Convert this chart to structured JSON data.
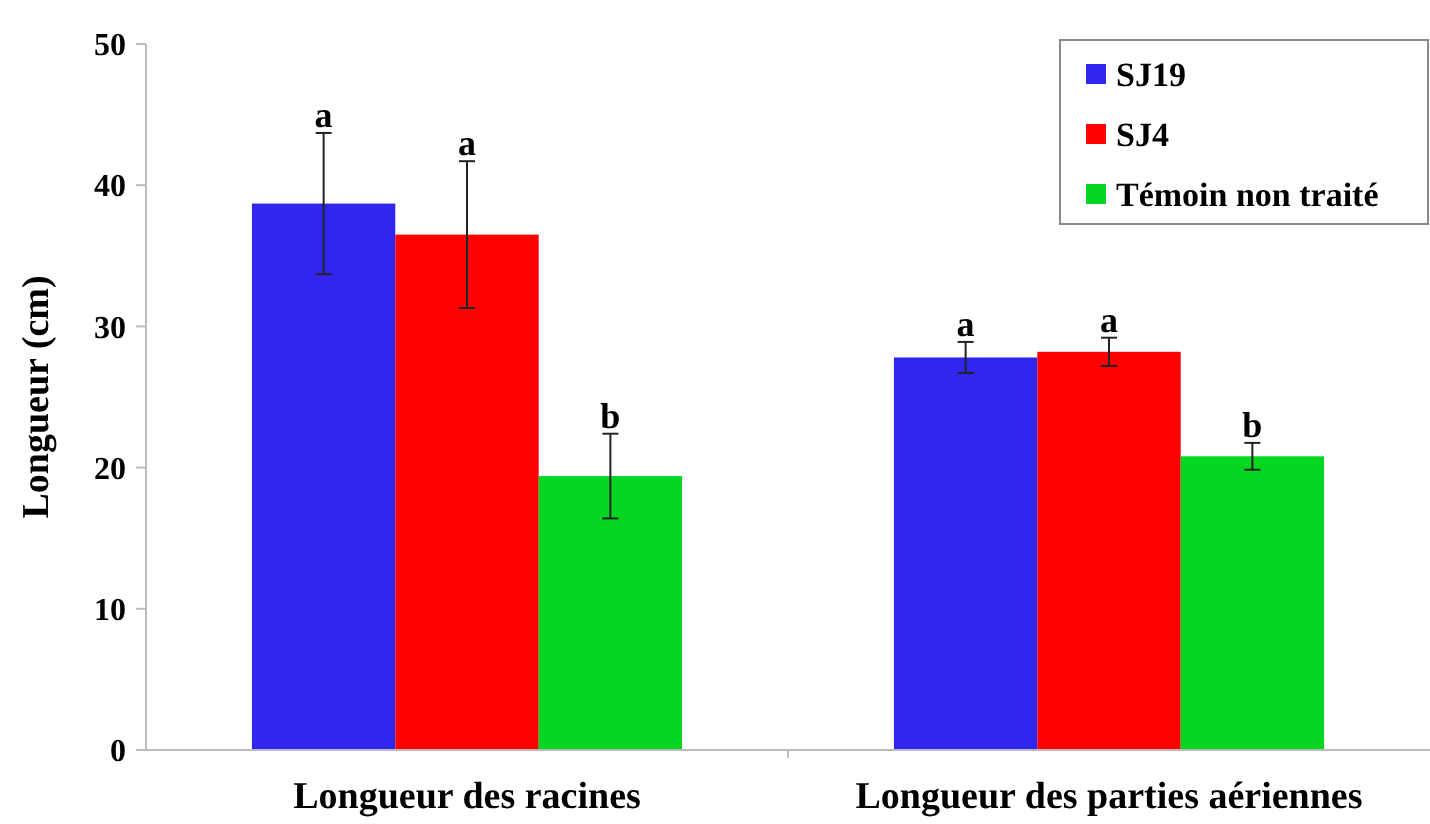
{
  "chart_data": {
    "type": "bar",
    "ylabel": "Longueur (cm)",
    "categories": [
      "Longueur des racines",
      "Longueur des parties aériennes"
    ],
    "series": [
      {
        "name": "SJ19",
        "color": "#3126f0",
        "values": [
          38.7,
          27.8
        ],
        "errors": [
          5,
          1.1
        ]
      },
      {
        "name": "SJ4",
        "color": "#ff0000",
        "values": [
          36.5,
          28.2
        ],
        "errors": [
          5.2,
          1
        ]
      },
      {
        "name": "Témoin non traité",
        "color": "#05d622",
        "values": [
          19.4,
          20.8
        ],
        "errors": [
          3,
          0.95
        ]
      }
    ],
    "ylim": [
      0,
      50
    ],
    "yticks": [
      0,
      10,
      20,
      30,
      40,
      50
    ],
    "grid": false,
    "legend": "top right",
    "annotations": [
      "a",
      "a",
      "b",
      "a",
      "a",
      "b"
    ]
  }
}
